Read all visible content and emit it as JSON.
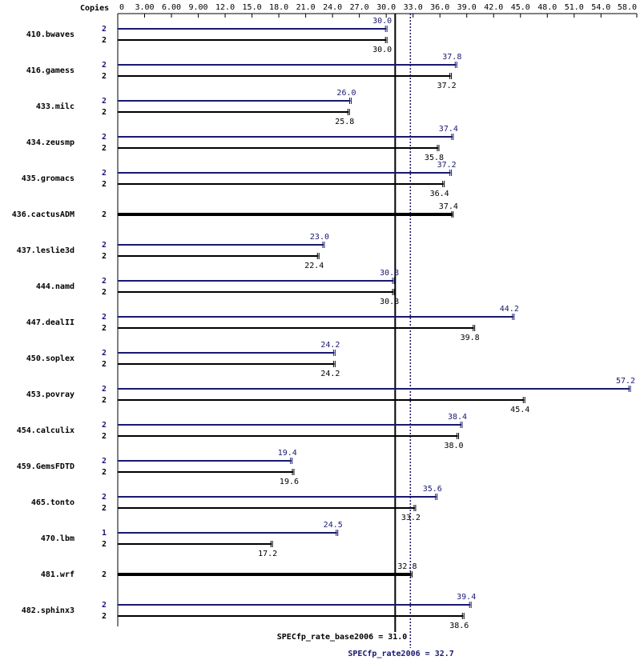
{
  "chart_data": {
    "type": "bar",
    "orientation": "horizontal",
    "x_axis_label": "Copies",
    "categories": [
      "410.bwaves",
      "416.gamess",
      "433.milc",
      "434.zeusmp",
      "435.gromacs",
      "436.cactusADM",
      "437.leslie3d",
      "444.namd",
      "447.dealII",
      "450.soplex",
      "453.povray",
      "454.calculix",
      "459.GemsFDTD",
      "465.tonto",
      "470.lbm",
      "481.wrf",
      "482.sphinx3"
    ],
    "series": [
      {
        "color": "#191970",
        "values": [
          30.0,
          37.8,
          26.0,
          37.4,
          37.2,
          null,
          23.0,
          30.8,
          44.2,
          24.2,
          57.2,
          38.4,
          19.4,
          35.6,
          24.5,
          null,
          39.4
        ],
        "value_labels": [
          "30.0",
          "37.8",
          "26.0",
          "37.4",
          "37.2",
          null,
          "23.0",
          "30.8",
          "44.2",
          "24.2",
          "57.2",
          "38.4",
          "19.4",
          "35.6",
          "24.5",
          null,
          "39.4"
        ],
        "copies": [
          2,
          2,
          2,
          2,
          2,
          null,
          2,
          2,
          2,
          2,
          2,
          2,
          2,
          2,
          1,
          null,
          2
        ]
      },
      {
        "color": "#000000",
        "values": [
          30.0,
          37.2,
          25.8,
          35.8,
          36.4,
          37.4,
          22.4,
          30.8,
          39.8,
          24.2,
          45.4,
          38.0,
          19.6,
          33.2,
          17.2,
          32.8,
          38.6
        ],
        "value_labels": [
          "30.0",
          "37.2",
          "25.8",
          "35.8",
          "36.4",
          "37.4",
          "22.4",
          "30.8",
          "39.8",
          "24.2",
          "45.4",
          "38.0",
          "19.6",
          "33.2",
          "17.2",
          "32.8",
          "38.6"
        ],
        "copies": [
          2,
          2,
          2,
          2,
          2,
          2,
          2,
          2,
          2,
          2,
          2,
          2,
          2,
          2,
          2,
          2,
          2
        ]
      }
    ],
    "xlim": [
      0,
      58
    ],
    "xticks": [
      0,
      {
        "value": 3,
        "label": "3.00"
      },
      {
        "value": 6,
        "label": "6.00"
      },
      {
        "value": 9,
        "label": "9.00"
      },
      {
        "value": 12,
        "label": "12.0"
      },
      {
        "value": 15,
        "label": "15.0"
      },
      {
        "value": 18,
        "label": "18.0"
      },
      {
        "value": 21,
        "label": "21.0"
      },
      {
        "value": 24,
        "label": "24.0"
      },
      {
        "value": 27,
        "label": "27.0"
      },
      {
        "value": 30,
        "label": "30.0"
      },
      {
        "value": 33,
        "label": "33.0"
      },
      {
        "value": 36,
        "label": "36.0"
      },
      {
        "value": 39,
        "label": "39.0"
      },
      {
        "value": 42,
        "label": "42.0"
      },
      {
        "value": 45,
        "label": "45.0"
      },
      {
        "value": 48,
        "label": "48.0"
      },
      {
        "value": 51,
        "label": "51.0"
      },
      {
        "value": 54,
        "label": "54.0"
      },
      {
        "value": 58,
        "label": "58.0"
      }
    ],
    "reference_lines": [
      {
        "label": "SPECfp_rate_base2006 =",
        "value": 31.0,
        "value_label": "31.0",
        "color": "#000000",
        "style": "solid"
      },
      {
        "label": "SPECfp_rate2006 =",
        "value": 32.7,
        "value_label": "32.7",
        "color": "#191970",
        "style": "dotted"
      }
    ]
  }
}
